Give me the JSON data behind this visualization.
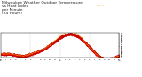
{
  "title": "Milwaukee Weather Outdoor Temperature\nvs Heat Index\nper Minute\n(24 Hours)",
  "title_fontsize": 3.2,
  "bg_color": "#ffffff",
  "plot_bg_color": "#ffffff",
  "temp_color": "#cc0000",
  "heat_color": "#ff9900",
  "ylim": [
    50,
    96
  ],
  "xlim": [
    0,
    1440
  ],
  "n_points": 1440,
  "yticks": [
    51,
    54,
    57,
    60,
    63,
    66,
    69,
    72,
    75,
    78,
    81,
    84,
    87,
    90,
    93
  ],
  "grid_hours": [
    0,
    360,
    720,
    1080,
    1440
  ]
}
